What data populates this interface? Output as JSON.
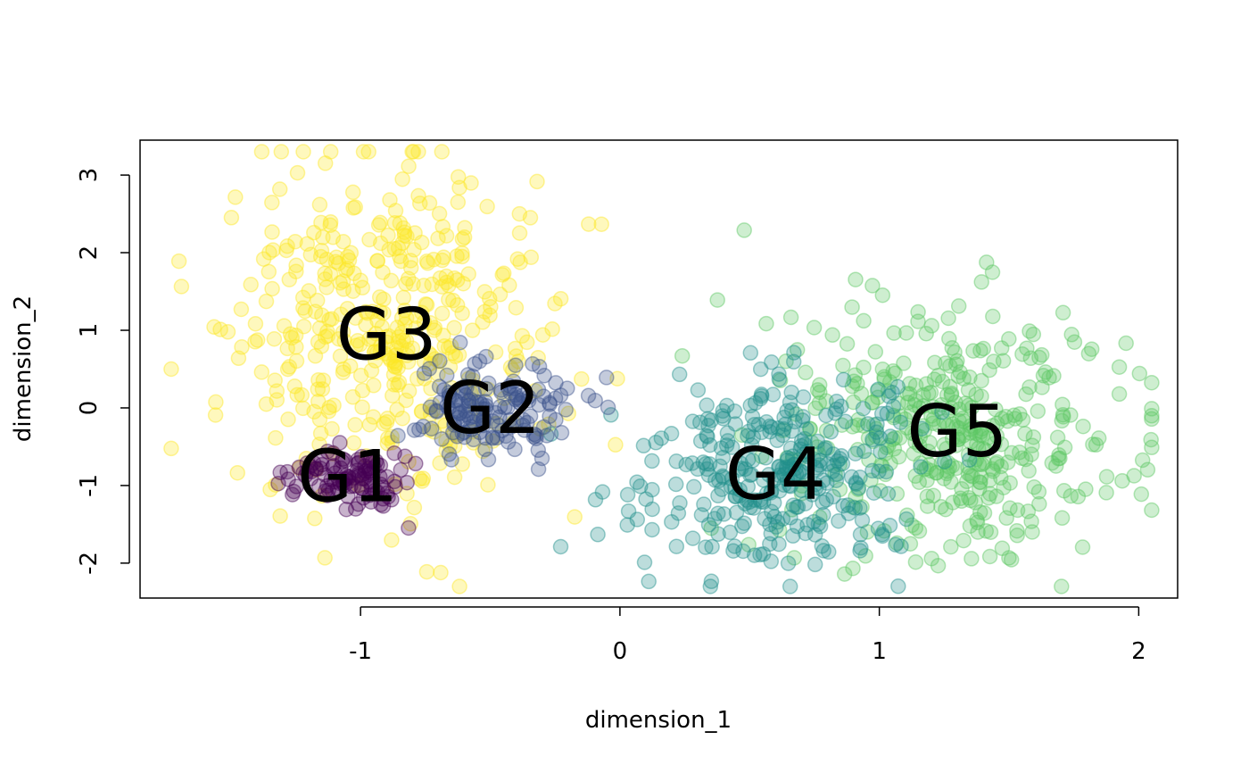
{
  "chart_data": {
    "type": "scatter",
    "title": "",
    "xlabel": "dimension_1",
    "ylabel": "dimension_2",
    "xlim": [
      -1.85,
      2.15
    ],
    "ylim": [
      -2.45,
      3.45
    ],
    "xticks": [
      -1,
      0,
      1,
      2
    ],
    "xtick_labels": [
      "-1",
      "0",
      "1",
      "2"
    ],
    "yticks": [
      -2,
      -1,
      0,
      1,
      2,
      3
    ],
    "ytick_labels": [
      "-2",
      "-1",
      "0",
      "1",
      "2",
      "3"
    ],
    "grid": false,
    "legend": "none",
    "marker": "open circle, semi-transparent fill",
    "groups": [
      {
        "label": "G1",
        "color": "#440154",
        "center": [
          -1.05,
          -0.88
        ],
        "spread": [
          0.12,
          0.2
        ],
        "n": 110
      },
      {
        "label": "G2",
        "color": "#3B528B",
        "center": [
          -0.5,
          0.0
        ],
        "spread": [
          0.15,
          0.32
        ],
        "n": 150
      },
      {
        "label": "G3",
        "color": "#FDE725",
        "center": [
          -0.9,
          0.95
        ],
        "spread": [
          0.3,
          1.05
        ],
        "n": 420
      },
      {
        "label": "G4",
        "color": "#21908C",
        "center": [
          0.6,
          -0.85
        ],
        "spread": [
          0.25,
          0.6
        ],
        "n": 320
      },
      {
        "label": "G5",
        "color": "#5DC863",
        "center": [
          1.3,
          -0.3
        ],
        "spread": [
          0.35,
          0.8
        ],
        "n": 400
      }
    ]
  }
}
